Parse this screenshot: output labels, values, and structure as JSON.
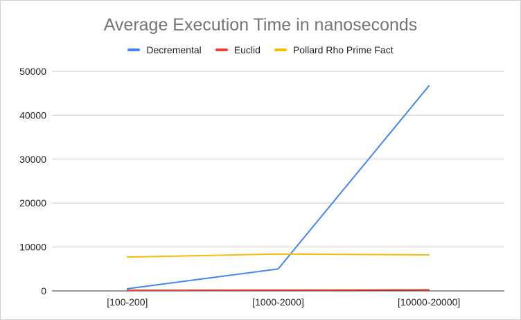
{
  "chart_data": {
    "type": "line",
    "title": "Average Execution Time in nanoseconds",
    "xlabel": "",
    "ylabel": "",
    "categories": [
      "[100-200]",
      "[1000-2000]",
      "[10000-20000]"
    ],
    "series": [
      {
        "name": "Decremental",
        "color": "#4285f4",
        "values": [
          500,
          5000,
          46700
        ]
      },
      {
        "name": "Euclid",
        "color": "#ea4335",
        "values": [
          150,
          200,
          250
        ]
      },
      {
        "name": "Pollard Rho Prime Fact",
        "color": "#fbbc04",
        "values": [
          7700,
          8400,
          8200
        ]
      }
    ],
    "ylim": [
      0,
      50000
    ],
    "yticks": [
      "0",
      "10000",
      "20000",
      "30000",
      "40000",
      "50000"
    ],
    "grid": true,
    "legend_position": "top"
  }
}
